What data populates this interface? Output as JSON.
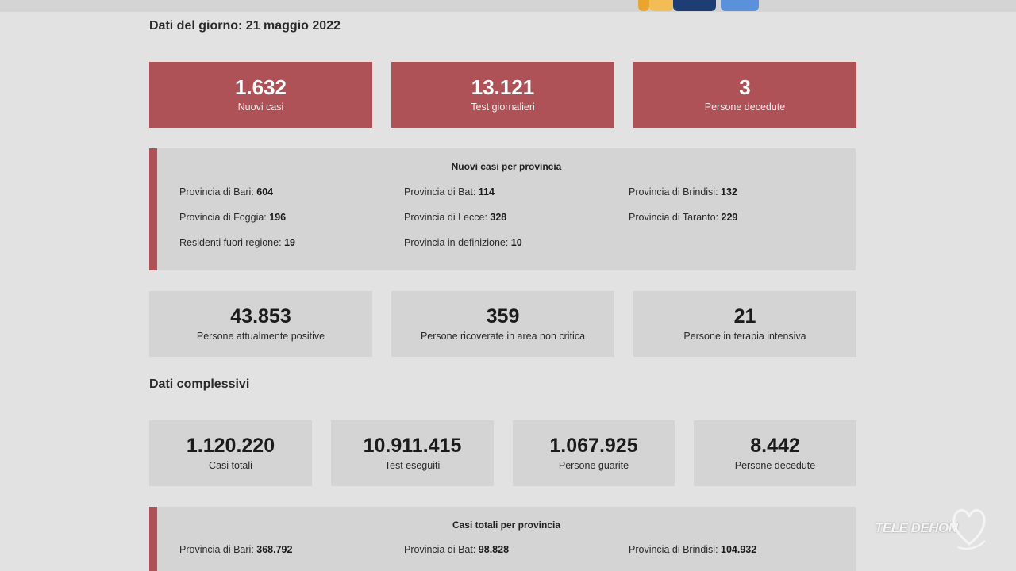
{
  "daily": {
    "heading": "Dati del giorno: 21 maggio 2022",
    "top_cards": [
      {
        "value": "1.632",
        "label": "Nuovi casi"
      },
      {
        "value": "13.121",
        "label": "Test giornalieri"
      },
      {
        "value": "3",
        "label": "Persone decedute"
      }
    ],
    "provinces": {
      "title": "Nuovi casi per provincia",
      "items": [
        {
          "label": "Provincia di Bari: ",
          "value": "604"
        },
        {
          "label": "Provincia di Bat: ",
          "value": "114"
        },
        {
          "label": "Provincia di Brindisi: ",
          "value": "132"
        },
        {
          "label": "Provincia di Foggia: ",
          "value": "196"
        },
        {
          "label": "Provincia di Lecce: ",
          "value": "328"
        },
        {
          "label": "Provincia di Taranto: ",
          "value": "229"
        },
        {
          "label": "Residenti fuori regione: ",
          "value": "19"
        },
        {
          "label": "Provincia in definizione: ",
          "value": "10"
        }
      ]
    },
    "status_cards": [
      {
        "value": "43.853",
        "label": "Persone attualmente positive"
      },
      {
        "value": "359",
        "label": "Persone ricoverate in area non critica"
      },
      {
        "value": "21",
        "label": "Persone in terapia intensiva"
      }
    ]
  },
  "overall": {
    "heading": "Dati complessivi",
    "cards": [
      {
        "value": "1.120.220",
        "label": "Casi totali"
      },
      {
        "value": "10.911.415",
        "label": "Test eseguiti"
      },
      {
        "value": "1.067.925",
        "label": "Persone guarite"
      },
      {
        "value": "8.442",
        "label": "Persone decedute"
      }
    ],
    "provinces": {
      "title": "Casi totali per provincia",
      "items": [
        {
          "label": "Provincia di Bari: ",
          "value": "368.792"
        },
        {
          "label": "Provincia di Bat: ",
          "value": "98.828"
        },
        {
          "label": "Provincia di Brindisi: ",
          "value": "104.932"
        }
      ]
    }
  },
  "watermark": "TELE DEHON",
  "colors": {
    "accent_red": "#ae5257",
    "card_grey": "#d4d4d4",
    "background": "#e2e2e2"
  }
}
